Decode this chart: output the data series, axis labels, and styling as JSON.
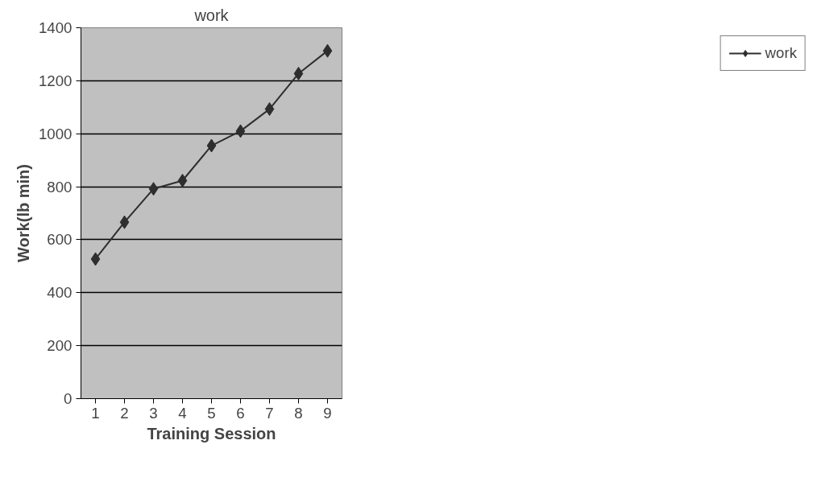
{
  "chart_data": {
    "type": "line",
    "title": "work",
    "xlabel": "Training Session",
    "ylabel": "Work(lb min)",
    "categories": [
      "1",
      "2",
      "3",
      "4",
      "5",
      "6",
      "7",
      "8",
      "9"
    ],
    "series": [
      {
        "name": "work",
        "color": "#2e2e2e",
        "values": [
          527,
          666,
          792,
          823,
          955,
          1010,
          1093,
          1227,
          1313
        ]
      }
    ],
    "ylim": [
      0,
      1400
    ],
    "yticks": [
      0,
      200,
      400,
      600,
      800,
      1000,
      1200,
      1400
    ],
    "grid": "y",
    "legend": "right",
    "marker": "diamond",
    "line_style": "solid"
  }
}
